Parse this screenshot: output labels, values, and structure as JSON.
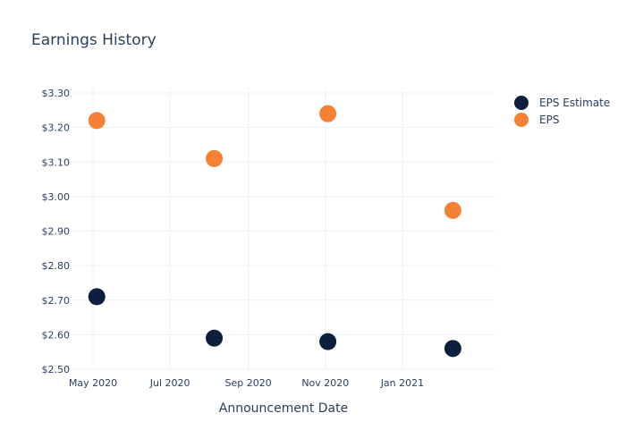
{
  "chart_data": {
    "type": "scatter",
    "title": "Earnings History",
    "xlabel": "Announcement Date",
    "ylabel": "",
    "x_tick_labels": [
      "May 2020",
      "Jul 2020",
      "Sep 2020",
      "Nov 2020",
      "Jan 2021"
    ],
    "x_tick_dates": [
      "2020-05-01",
      "2020-07-01",
      "2020-09-01",
      "2020-11-01",
      "2021-01-01"
    ],
    "x_range": [
      "2020-04-14",
      "2021-03-15"
    ],
    "y_tick_labels": [
      "$2.50",
      "$2.60",
      "$2.70",
      "$2.80",
      "$2.90",
      "$3.00",
      "$3.10",
      "$3.20",
      "$3.30"
    ],
    "y_tick_values": [
      2.5,
      2.6,
      2.7,
      2.8,
      2.9,
      3.0,
      3.1,
      3.2,
      3.3
    ],
    "ylim": [
      2.5,
      3.3
    ],
    "grid": true,
    "legend_position": "top-right",
    "series": [
      {
        "name": "EPS Estimate",
        "color": "#0d1f3c",
        "points": [
          {
            "x": "2020-05-04",
            "y": 2.71
          },
          {
            "x": "2020-08-05",
            "y": 2.59
          },
          {
            "x": "2020-11-03",
            "y": 2.58
          },
          {
            "x": "2021-02-10",
            "y": 2.56
          }
        ]
      },
      {
        "name": "EPS",
        "color": "#f58134",
        "points": [
          {
            "x": "2020-05-04",
            "y": 3.22
          },
          {
            "x": "2020-08-05",
            "y": 3.11
          },
          {
            "x": "2020-11-03",
            "y": 3.24
          },
          {
            "x": "2021-02-10",
            "y": 2.96
          }
        ]
      }
    ]
  }
}
